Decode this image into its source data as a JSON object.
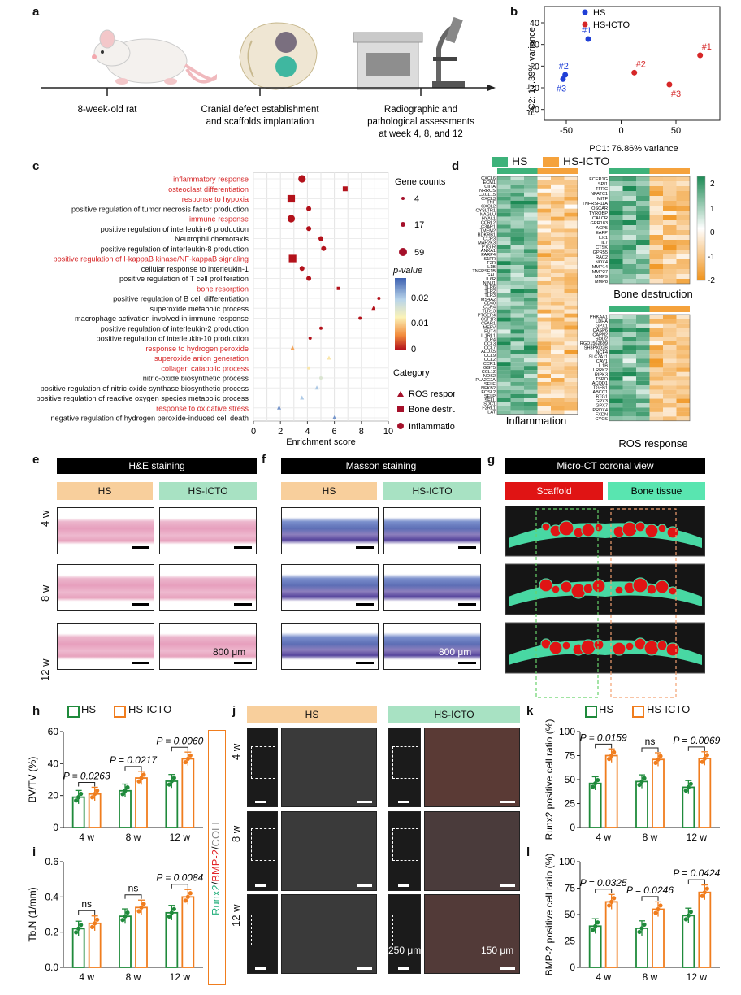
{
  "panels": {
    "a": "a",
    "b": "b",
    "c": "c",
    "d": "d",
    "e": "e",
    "f": "f",
    "g": "g",
    "h": "h",
    "i": "i",
    "j": "j",
    "k": "k",
    "l": "l"
  },
  "timeline": {
    "step1": "8-week-old rat",
    "step2_l1": "Cranial defect establishment",
    "step2_l2": "and scaffolds implantation",
    "step3_l1": "Radiographic and",
    "step3_l2": "pathological assessments",
    "step3_l3": "at week 4, 8, and 12"
  },
  "colors": {
    "hs": "#1f8a3b",
    "ict": "#f07d1e",
    "red": "#d62728",
    "blue": "#1f3fd6",
    "dot": "#a5102a",
    "hs_bar": "#3db27a",
    "ict_bar": "#f5a23c"
  },
  "pca": {
    "xlabel": "PC1: 76.86% variance",
    "ylabel": "PC2: 17.39% variance",
    "legend": [
      "HS",
      "HS-ICTO"
    ],
    "xticks": [
      "-50",
      "0",
      "50"
    ],
    "yticks": [
      "-40",
      "-20",
      "0",
      "20",
      "40"
    ]
  },
  "chart_data": [
    {
      "type": "scatter",
      "xlabel": "PC1: 76.86% variance",
      "ylabel": "PC2: 17.39% variance",
      "xlim": [
        -70,
        90
      ],
      "ylim": [
        -50,
        55
      ],
      "series": [
        {
          "name": "HS",
          "points": [
            {
              "label": "#1",
              "x": -30,
              "y": 25
            },
            {
              "label": "#2",
              "x": -51,
              "y": -8
            },
            {
              "label": "#3",
              "x": -53,
              "y": -12
            }
          ]
        },
        {
          "name": "HS-ICTO",
          "points": [
            {
              "label": "#1",
              "x": 72,
              "y": 10
            },
            {
              "label": "#2",
              "x": 12,
              "y": -6
            },
            {
              "label": "#3",
              "x": 44,
              "y": -17
            }
          ]
        }
      ]
    },
    {
      "type": "scatter",
      "xlabel": "Enrichment score",
      "xlim": [
        0,
        10
      ],
      "terms": [
        {
          "name": "inflammatory response",
          "x": 3.6,
          "red": true,
          "cat": "Inflammation",
          "size": 59,
          "p": 0.0
        },
        {
          "name": "osteoclast differentiation",
          "x": 6.8,
          "red": true,
          "cat": "Bone destruction",
          "size": 17,
          "p": 0.0
        },
        {
          "name": "response to hypoxia",
          "x": 2.8,
          "red": true,
          "cat": "Bone destruction",
          "size": 59,
          "p": 0.0
        },
        {
          "name": "positive regulation of tumor necrosis factor production",
          "x": 4.1,
          "red": false,
          "cat": "Inflammation",
          "size": 17,
          "p": 0.0
        },
        {
          "name": "immune response",
          "x": 2.8,
          "red": true,
          "cat": "Inflammation",
          "size": 59,
          "p": 0.0
        },
        {
          "name": "positive regulation of interleukin-6 production",
          "x": 4.1,
          "red": false,
          "cat": "Inflammation",
          "size": 17,
          "p": 0.0
        },
        {
          "name": "Neutrophil chemotaxis",
          "x": 5.0,
          "red": false,
          "cat": "Inflammation",
          "size": 17,
          "p": 0.0
        },
        {
          "name": "positive regulation of interleukin-8 production",
          "x": 5.2,
          "red": false,
          "cat": "Inflammation",
          "size": 17,
          "p": 0.0
        },
        {
          "name": "positive regulation of I-kappaB kinase/NF-kappaB signaling",
          "x": 2.9,
          "red": true,
          "cat": "Bone destruction",
          "size": 59,
          "p": 0.0
        },
        {
          "name": "cellular response to interleukin-1",
          "x": 3.6,
          "red": false,
          "cat": "Inflammation",
          "size": 17,
          "p": 0.0
        },
        {
          "name": "positive regulation of T cell proliferation",
          "x": 4.1,
          "red": false,
          "cat": "Inflammation",
          "size": 17,
          "p": 0.0
        },
        {
          "name": "bone resorption",
          "x": 6.3,
          "red": true,
          "cat": "Bone destruction",
          "size": 4,
          "p": 0.0
        },
        {
          "name": "positive regulation of B cell differentiation",
          "x": 9.3,
          "red": false,
          "cat": "Inflammation",
          "size": 4,
          "p": 0.0
        },
        {
          "name": "superoxide metabolic process",
          "x": 8.9,
          "red": false,
          "cat": "ROS response",
          "size": 4,
          "p": 0.0
        },
        {
          "name": "macrophage activation involved in immune response",
          "x": 7.9,
          "red": false,
          "cat": "Inflammation",
          "size": 4,
          "p": 0.0
        },
        {
          "name": "positive regulation of interleukin-2 production",
          "x": 5.0,
          "red": false,
          "cat": "Inflammation",
          "size": 4,
          "p": 0.0
        },
        {
          "name": "positive regulation of interleukin-10 production",
          "x": 4.2,
          "red": false,
          "cat": "Inflammation",
          "size": 4,
          "p": 0.0
        },
        {
          "name": "response to hydrogen peroxide",
          "x": 2.9,
          "red": true,
          "cat": "ROS response",
          "size": 4,
          "p": 0.01
        },
        {
          "name": "superoxide anion generation",
          "x": 5.6,
          "red": true,
          "cat": "ROS response",
          "size": 4,
          "p": 0.015
        },
        {
          "name": "collagen catabolic process",
          "x": 4.1,
          "red": true,
          "cat": "Inflammation",
          "size": 4,
          "p": 0.015
        },
        {
          "name": "nitric-oxide biosynthetic process",
          "x": 5.0,
          "red": false,
          "cat": "Inflammation",
          "size": 4,
          "p": 0.02
        },
        {
          "name": "positive regulation of nitric-oxide synthase biosynthetic process",
          "x": 4.7,
          "red": false,
          "cat": "ROS response",
          "size": 4,
          "p": 0.025
        },
        {
          "name": "positive regulation of reactive oxygen species metabolic process",
          "x": 3.6,
          "red": false,
          "cat": "ROS response",
          "size": 4,
          "p": 0.025
        },
        {
          "name": "response to oxidative stress",
          "x": 1.9,
          "red": true,
          "cat": "ROS response",
          "size": 4,
          "p": 0.03
        },
        {
          "name": "negative regulation of hydrogen peroxide-induced cell death",
          "x": 6.0,
          "red": false,
          "cat": "ROS response",
          "size": 4,
          "p": 0.03
        }
      ],
      "size_legend_title": "Gene counts",
      "size_legend": [
        "4",
        "17",
        "59"
      ],
      "pvalue_title": "p-value",
      "pvalue_ticks": [
        "0.02",
        "0.01",
        "0"
      ],
      "category_title": "Category",
      "categories": [
        "ROS response",
        "Bone destruction",
        "Inflammation"
      ],
      "xticks": [
        "0",
        "2",
        "4",
        "6",
        "8",
        "10"
      ]
    },
    {
      "type": "bar",
      "ylabel": "BV/TV (%)",
      "ylim": [
        0,
        60
      ],
      "yticks": [
        "0",
        "20",
        "40",
        "60"
      ],
      "categories": [
        "4 w",
        "8 w",
        "12 w"
      ],
      "series": [
        {
          "name": "HS",
          "values": [
            19,
            23,
            29
          ]
        },
        {
          "name": "HS-ICTO",
          "values": [
            21,
            31,
            43
          ]
        }
      ],
      "annotations": [
        {
          "text": "P = 0.0263",
          "cat": 0
        },
        {
          "text": "P = 0.0217",
          "cat": 1
        },
        {
          "text": "P = 0.0060",
          "cat": 2
        }
      ]
    },
    {
      "type": "bar",
      "ylabel": "Tb.N (1/mm)",
      "ylim": [
        0,
        0.6
      ],
      "yticks": [
        "0.0",
        "0.2",
        "0.4",
        "0.6"
      ],
      "categories": [
        "4 w",
        "8 w",
        "12 w"
      ],
      "series": [
        {
          "name": "HS",
          "values": [
            0.22,
            0.29,
            0.31
          ]
        },
        {
          "name": "HS-ICTO",
          "values": [
            0.25,
            0.34,
            0.4
          ]
        }
      ],
      "annotations": [
        {
          "text": "ns",
          "cat": 0
        },
        {
          "text": "ns",
          "cat": 1
        },
        {
          "text": "P = 0.0084",
          "cat": 2
        }
      ]
    },
    {
      "type": "bar",
      "ylabel": "Runx2 positive cell ratio (%)",
      "ylim": [
        0,
        100
      ],
      "yticks": [
        "0",
        "25",
        "50",
        "75",
        "100"
      ],
      "categories": [
        "4 w",
        "8 w",
        "12 w"
      ],
      "series": [
        {
          "name": "HS",
          "values": [
            46,
            48,
            42
          ]
        },
        {
          "name": "HS-ICTO",
          "values": [
            75,
            71,
            72
          ]
        }
      ],
      "annotations": [
        {
          "text": "P = 0.0159",
          "cat": 0
        },
        {
          "text": "ns",
          "cat": 1
        },
        {
          "text": "P = 0.0069",
          "cat": 2
        }
      ]
    },
    {
      "type": "bar",
      "ylabel": "BMP-2 positive cell ratio (%)",
      "ylim": [
        0,
        100
      ],
      "yticks": [
        "0",
        "25",
        "50",
        "75",
        "100"
      ],
      "categories": [
        "4 w",
        "8 w",
        "12 w"
      ],
      "series": [
        {
          "name": "HS",
          "values": [
            39,
            37,
            49
          ]
        },
        {
          "name": "HS-ICTO",
          "values": [
            62,
            55,
            71
          ]
        }
      ],
      "annotations": [
        {
          "text": "P = 0.0325",
          "cat": 0
        },
        {
          "text": "P = 0.0246",
          "cat": 1
        },
        {
          "text": "P = 0.0424",
          "cat": 2
        }
      ]
    }
  ],
  "heatmap": {
    "legend": [
      "HS",
      "HS-ICTO"
    ],
    "scale_ticks": [
      "2",
      "1",
      "0",
      "-1",
      "-2"
    ],
    "titles": {
      "inflammation": "Inflammation",
      "bone": "Bone destruction",
      "ros": "ROS response"
    },
    "genes_infl": [
      "CXCL6",
      "ECM1",
      "CIITA",
      "NRROS",
      "CXCL15",
      "CXCL3",
      "TNF",
      "CXCL2",
      "CYSLTR1",
      "NAGLU",
      "HYAL1",
      "CCRL2",
      "C3AR1",
      "TMEM2",
      "BDKRB1",
      "CCR3",
      "MAP2K3",
      "PTGIR",
      "ANXA1",
      "PARP4",
      "S1PR",
      "F2R",
      "IL1B",
      "TNFRSF1B",
      "GAL",
      "IL6R",
      "NINJ1",
      "TLR6",
      "TLR2",
      "TLR3",
      "MS4A2",
      "CD40",
      "CCR4",
      "TLR13",
      "PTGER4",
      "CSF1R",
      "C5AR1",
      "MEFV",
      "FUT4",
      "IL1RL1",
      "TLR4",
      "CCL3",
      "CCL7",
      "ALOX5",
      "CCL9",
      "CCL2",
      "CCR1",
      "GGT5",
      "CCL12",
      "NOS2",
      "PLA2G2A",
      "SELE",
      "NFKB2",
      "FOSL2",
      "SELP",
      "SELL",
      "SDC1",
      "F2RL1",
      "LAT"
    ],
    "genes_bone": [
      "FCER1G",
      "SPI1",
      "TFRC",
      "NFATC1",
      "MITF",
      "TNFRSF11A",
      "OSCAR",
      "TYROBP",
      "CALCR",
      "GPR183",
      "ACP5",
      "EAPP",
      "ILK1",
      "IL7",
      "CTSK",
      "GPR55",
      "RAC2",
      "NOX4",
      "MMP14",
      "MMP27",
      "MMP9",
      "MMP8"
    ],
    "genes_ros": [
      "PRKAA1",
      "LDHA",
      "GPX1",
      "CASP6",
      "CAPN2",
      "SOD2",
      "RGD1562699",
      "SH3PXD2B",
      "NCF4",
      "SLC7A11",
      "CAV1",
      "IL1B",
      "LRRK2",
      "RIPK3",
      "TSPO",
      "ACOD1",
      "TGFB1",
      "ABCC1",
      "BTG1",
      "GPX3",
      "GPX7",
      "PRDX4",
      "FXDN",
      "CYCS"
    ],
    "bar_hs": "#3db27a",
    "bar_ict": "#f5a23c"
  },
  "staining": {
    "he_title": "H&E staining",
    "masson_title": "Masson staining",
    "ct_title": "Micro-CT coronal view",
    "hs": "HS",
    "ict": "HS-ICTO",
    "scaffold": "Scaffold",
    "bone": "Bone tissue",
    "rows": [
      "4 w",
      "8 w",
      "12 w"
    ],
    "scale_800": "800 μm",
    "ct_hs": "HS",
    "ct_ict": "HS-ICTO"
  },
  "j_panel": {
    "hs": "HS",
    "ict": "HS-ICTO",
    "rows": [
      "4 w",
      "8 w",
      "12 w"
    ],
    "vlabel_runx": "Runx2",
    "vlabel_sep1": "/",
    "vlabel_bmp": "BMP-2",
    "vlabel_sep2": "/",
    "vlabel_col": "COLI",
    "scale_250": "250 μm",
    "scale_150": "150 μm"
  },
  "legend_hk": {
    "hs": "HS",
    "ict": "HS-ICTO"
  }
}
